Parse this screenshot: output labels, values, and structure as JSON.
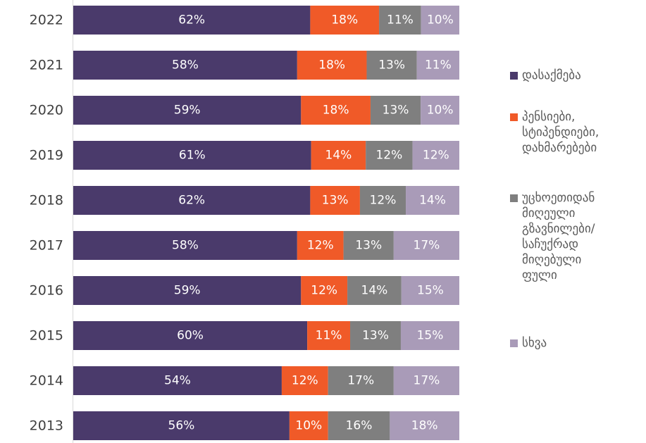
{
  "chart_data": {
    "type": "bar",
    "orientation": "horizontal",
    "stacked": true,
    "categories": [
      "2022",
      "2021",
      "2020",
      "2019",
      "2018",
      "2017",
      "2016",
      "2015",
      "2014",
      "2013"
    ],
    "series": [
      {
        "name": "დასაქმება",
        "color": "#4a3a6b",
        "values": [
          62,
          58,
          59,
          61,
          62,
          58,
          59,
          60,
          54,
          56
        ]
      },
      {
        "name": "პენსიები,\nსტიპენდიები,\nდახმარებები",
        "color": "#f05a28",
        "values": [
          18,
          18,
          18,
          14,
          13,
          12,
          12,
          11,
          12,
          10
        ]
      },
      {
        "name": "უცხოეთიდან\nმიღეული\nგზავნილები/\nსაჩუქრად\nმიღებული\nფული",
        "color": "#7f7f7f",
        "values": [
          11,
          13,
          13,
          12,
          12,
          13,
          14,
          13,
          17,
          16
        ]
      },
      {
        "name": "სხვა",
        "color": "#a99bb8",
        "values": [
          10,
          11,
          10,
          12,
          14,
          17,
          15,
          15,
          17,
          18
        ]
      }
    ],
    "value_suffix": "%",
    "legend_position": "right",
    "grid": false
  }
}
